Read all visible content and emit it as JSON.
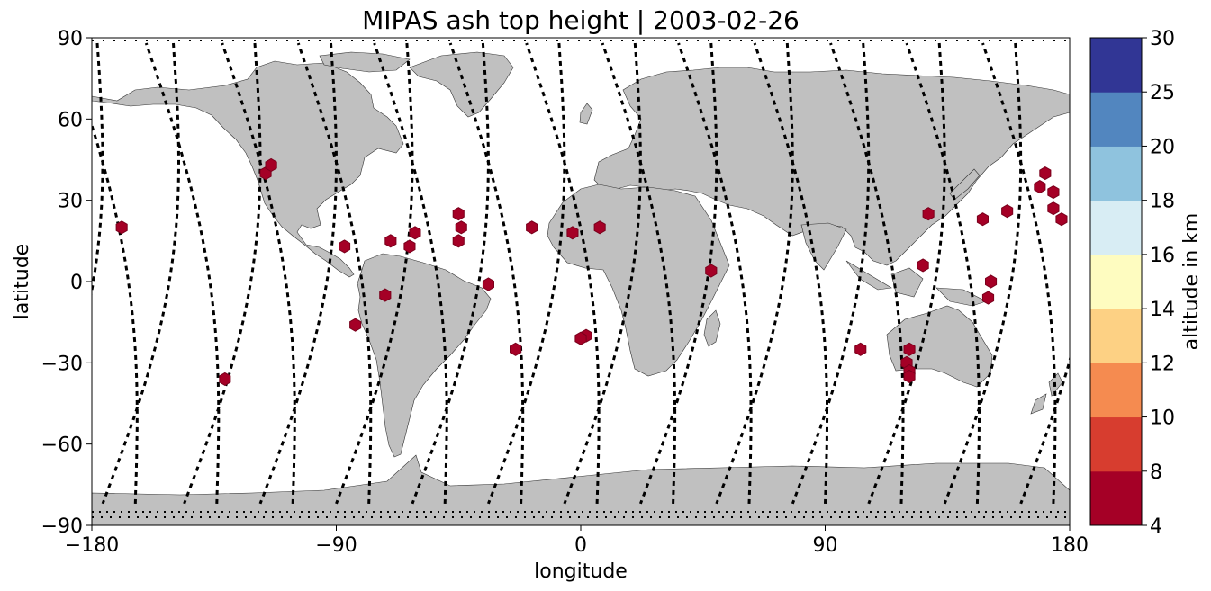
{
  "chart_data": {
    "type": "scatter",
    "title": "MIPAS ash top height | 2003-02-26",
    "xlabel": "longitude",
    "ylabel": "latitude",
    "xlim": [
      -180,
      180
    ],
    "ylim": [
      -90,
      90
    ],
    "x_ticks": [
      -180,
      -90,
      0,
      90,
      180
    ],
    "y_ticks": [
      -90,
      -60,
      -30,
      0,
      30,
      60,
      90
    ],
    "x_tick_labels": [
      "−180",
      "−90",
      "0",
      "90",
      "180"
    ],
    "y_tick_labels": [
      "−90",
      "−60",
      "−30",
      "0",
      "30",
      "60",
      "90"
    ],
    "grid": false,
    "colorbar": {
      "label": "altitude in km",
      "boundaries": [
        4,
        8,
        10,
        12,
        14,
        16,
        18,
        20,
        25,
        30
      ],
      "tick_labels": [
        "4",
        "8",
        "10",
        "12",
        "14",
        "16",
        "18",
        "20",
        "25",
        "30"
      ],
      "colors": [
        "#a50026",
        "#d73027",
        "#f46d43",
        "#fdae61",
        "#fee090",
        "#ffffbf",
        "#e0f3f8",
        "#abd9e9",
        "#74add1",
        "#313695"
      ],
      "display_colors": [
        "#a50026",
        "#d73d2f",
        "#f58b50",
        "#fdd184",
        "#fefcc0",
        "#d8edf4",
        "#8fc3de",
        "#5286bf",
        "#313695"
      ]
    },
    "marker_color": "#a50026",
    "ash_points": [
      {
        "lon": -169,
        "lat": 20
      },
      {
        "lon": -131,
        "lat": -36
      },
      {
        "lon": -116,
        "lat": 40
      },
      {
        "lon": -114,
        "lat": 43
      },
      {
        "lon": -87,
        "lat": 13
      },
      {
        "lon": -83,
        "lat": -16
      },
      {
        "lon": -72,
        "lat": -5
      },
      {
        "lon": -70,
        "lat": 15
      },
      {
        "lon": -63,
        "lat": 13
      },
      {
        "lon": -61,
        "lat": 18
      },
      {
        "lon": -45,
        "lat": 25
      },
      {
        "lon": -44,
        "lat": 20
      },
      {
        "lon": -45,
        "lat": 15
      },
      {
        "lon": -34,
        "lat": -1
      },
      {
        "lon": -24,
        "lat": -25
      },
      {
        "lon": -18,
        "lat": 20
      },
      {
        "lon": -3,
        "lat": 18
      },
      {
        "lon": 2,
        "lat": -20
      },
      {
        "lon": 0,
        "lat": -21
      },
      {
        "lon": 7,
        "lat": 20
      },
      {
        "lon": 48,
        "lat": 4
      },
      {
        "lon": 103,
        "lat": -25
      },
      {
        "lon": 126,
        "lat": 6
      },
      {
        "lon": 128,
        "lat": 25
      },
      {
        "lon": 121,
        "lat": -25
      },
      {
        "lon": 120,
        "lat": -30
      },
      {
        "lon": 121,
        "lat": -33
      },
      {
        "lon": 121,
        "lat": -35
      },
      {
        "lon": 148,
        "lat": 23
      },
      {
        "lon": 150,
        "lat": -6
      },
      {
        "lon": 151,
        "lat": 0
      },
      {
        "lon": 157,
        "lat": 26
      },
      {
        "lon": 171,
        "lat": 40
      },
      {
        "lon": 169,
        "lat": 35
      },
      {
        "lon": 174,
        "lat": 33
      },
      {
        "lon": 174,
        "lat": 27
      },
      {
        "lon": 177,
        "lat": 23
      }
    ],
    "land_color": "#c0c0c0",
    "track_color": "#000000"
  }
}
